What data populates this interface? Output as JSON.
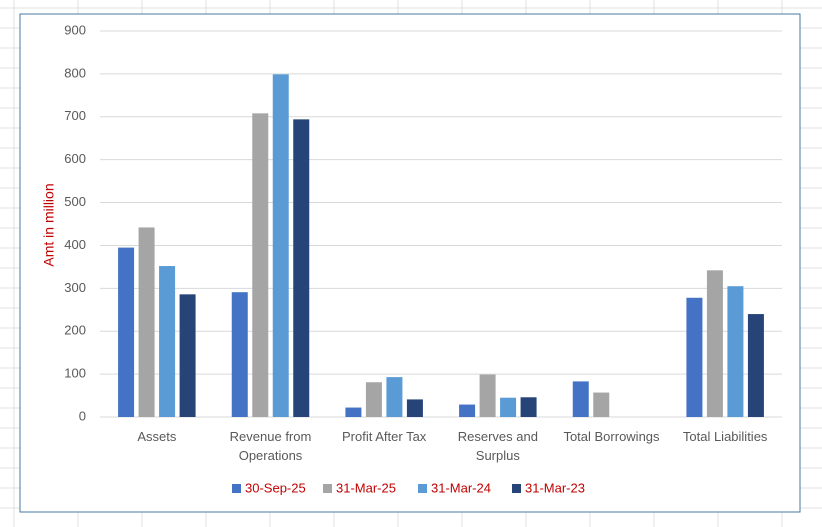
{
  "chart_data": {
    "type": "bar",
    "y_label": "Amt in million",
    "categories": [
      "Assets",
      "Revenue from Operations",
      "Profit After Tax",
      "Reserves and Surplus",
      "Total Borrowings",
      "Total Liabilities"
    ],
    "series": [
      {
        "name": "30-Sep-25",
        "color": "#4472c4",
        "values": [
          395,
          291,
          22,
          29,
          83,
          278
        ]
      },
      {
        "name": "31-Mar-25",
        "color": "#a5a5a5",
        "values": [
          442,
          708,
          81,
          99,
          57,
          342
        ]
      },
      {
        "name": "31-Mar-24",
        "color": "#5b9bd5",
        "values": [
          352,
          799,
          93,
          45,
          null,
          305
        ]
      },
      {
        "name": "31-Mar-23",
        "color": "#264478",
        "values": [
          286,
          694,
          41,
          46,
          null,
          240
        ]
      }
    ],
    "ylim": [
      0,
      900
    ],
    "yticks": [
      0,
      100,
      200,
      300,
      400,
      500,
      600,
      700,
      800,
      900
    ],
    "grid": true,
    "legend": "bottom"
  }
}
